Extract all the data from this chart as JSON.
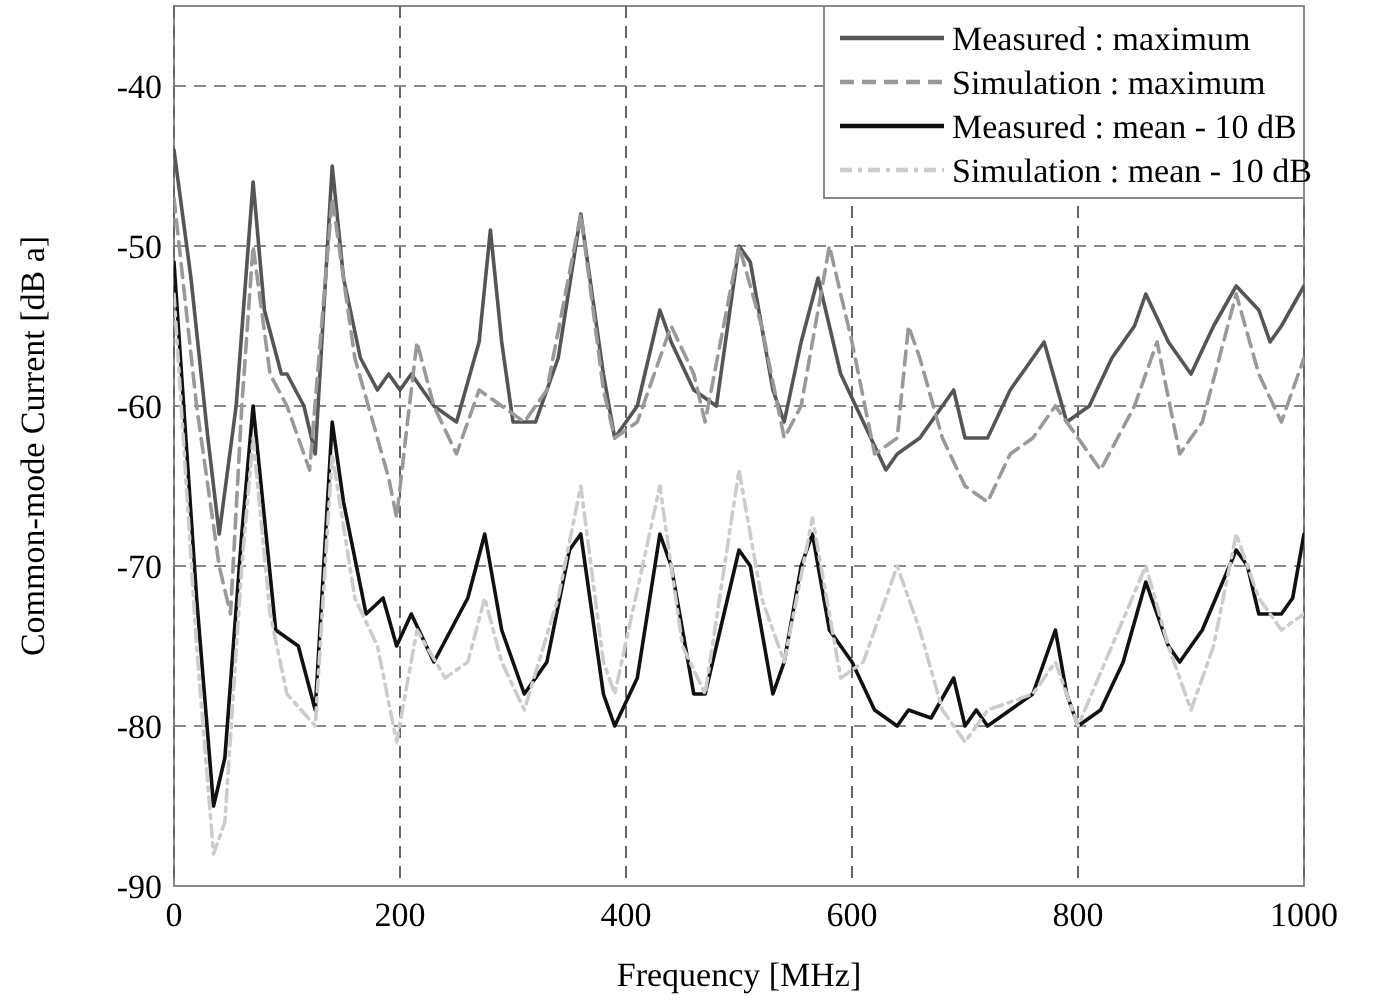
{
  "chart_data": {
    "type": "line",
    "xlabel": "Frequency [MHz]",
    "ylabel": "Common-mode Current [dB a]",
    "xlim": [
      0,
      1000
    ],
    "ylim": [
      -90,
      -35
    ],
    "xticks": [
      0,
      200,
      400,
      600,
      800,
      1000
    ],
    "yticks": [
      -90,
      -80,
      -70,
      -60,
      -50,
      -40
    ],
    "grid": true,
    "legend": "top right",
    "series": [
      {
        "name": "Measured : maximum",
        "color": "#555555",
        "line_style": "solid",
        "x": [
          0,
          15,
          30,
          40,
          55,
          70,
          80,
          95,
          100,
          115,
          125,
          140,
          150,
          165,
          180,
          190,
          200,
          210,
          230,
          250,
          270,
          280,
          290,
          300,
          320,
          340,
          360,
          380,
          390,
          410,
          430,
          440,
          460,
          480,
          500,
          510,
          530,
          540,
          555,
          570,
          590,
          610,
          630,
          640,
          660,
          680,
          690,
          700,
          720,
          740,
          760,
          770,
          790,
          810,
          830,
          850,
          860,
          880,
          900,
          920,
          940,
          960,
          970,
          980,
          1000
        ],
        "values": [
          -44,
          -52,
          -62,
          -68,
          -60,
          -46,
          -54,
          -58,
          -58,
          -60,
          -63,
          -45,
          -52,
          -57,
          -59,
          -58,
          -59,
          -58,
          -60,
          -61,
          -56,
          -49,
          -56,
          -61,
          -61,
          -57,
          -48,
          -58,
          -62,
          -60,
          -54,
          -56,
          -59,
          -60,
          -50,
          -51,
          -59,
          -61,
          -56,
          -52,
          -58,
          -61,
          -64,
          -63,
          -62,
          -60,
          -59,
          -62,
          -62,
          -59,
          -57,
          -56,
          -61,
          -60,
          -57,
          -55,
          -53,
          -56,
          -58,
          -55,
          -52.5,
          -54,
          -56,
          -55,
          -52.5
        ]
      },
      {
        "name": "Simulation : maximum",
        "color": "#999999",
        "line_style": "dashed",
        "x": [
          0,
          20,
          40,
          50,
          60,
          70,
          85,
          100,
          120,
          140,
          160,
          180,
          190,
          197,
          205,
          215,
          230,
          250,
          270,
          290,
          310,
          330,
          360,
          380,
          390,
          410,
          440,
          460,
          470,
          500,
          520,
          540,
          555,
          580,
          600,
          620,
          640,
          650,
          660,
          680,
          700,
          720,
          740,
          760,
          780,
          800,
          820,
          850,
          870,
          890,
          910,
          940,
          960,
          980,
          1000
        ],
        "values": [
          -47,
          -60,
          -70,
          -73,
          -60,
          -50,
          -58,
          -60,
          -64,
          -47,
          -57,
          -62,
          -64.5,
          -67,
          -62,
          -56,
          -60,
          -63,
          -59,
          -60,
          -61,
          -59,
          -48,
          -59,
          -62,
          -61,
          -55,
          -58,
          -61,
          -50,
          -55,
          -62,
          -60,
          -50,
          -56,
          -63,
          -62,
          -55,
          -57,
          -62,
          -65,
          -66,
          -63,
          -62,
          -60,
          -62,
          -64,
          -60,
          -56,
          -63,
          -61,
          -53,
          -58,
          -61,
          -57
        ]
      },
      {
        "name": "Measured : mean - 10 dB",
        "color": "#111111",
        "line_style": "solid",
        "x": [
          0,
          20,
          35,
          45,
          60,
          70,
          80,
          90,
          110,
          125,
          140,
          150,
          170,
          185,
          197,
          210,
          230,
          260,
          275,
          290,
          310,
          330,
          350,
          360,
          380,
          390,
          410,
          430,
          440,
          460,
          470,
          500,
          510,
          530,
          540,
          555,
          565,
          580,
          600,
          620,
          640,
          650,
          670,
          690,
          700,
          710,
          720,
          740,
          760,
          780,
          790,
          800,
          820,
          840,
          860,
          880,
          890,
          910,
          940,
          950,
          960,
          980,
          990,
          1000
        ],
        "values": [
          -51,
          -72,
          -85,
          -82,
          -68,
          -60,
          -67,
          -74,
          -75,
          -79,
          -61,
          -66,
          -73,
          -72,
          -75,
          -73,
          -76,
          -72,
          -68,
          -74,
          -78,
          -76,
          -69,
          -68,
          -78,
          -80,
          -77,
          -68,
          -70,
          -78,
          -78,
          -69,
          -70,
          -78,
          -76,
          -70,
          -68,
          -74,
          -76,
          -79,
          -80,
          -79,
          -79.5,
          -77,
          -80,
          -79,
          -80,
          -79,
          -78,
          -74,
          -78,
          -80,
          -79,
          -76,
          -71,
          -75,
          -76,
          -74,
          -69,
          -70,
          -73,
          -73,
          -72,
          -68
        ]
      },
      {
        "name": "Simulation : mean - 10 dB",
        "color": "#cccccc",
        "line_style": "dotted",
        "x": [
          0,
          20,
          35,
          45,
          60,
          70,
          85,
          100,
          125,
          140,
          160,
          180,
          197,
          215,
          240,
          260,
          275,
          290,
          310,
          340,
          360,
          380,
          390,
          430,
          450,
          470,
          500,
          520,
          540,
          565,
          590,
          610,
          640,
          660,
          680,
          700,
          720,
          760,
          780,
          800,
          830,
          860,
          880,
          900,
          920,
          940,
          960,
          980,
          1000
        ],
        "values": [
          -53,
          -75,
          -88,
          -86,
          -70,
          -62,
          -73,
          -78,
          -80,
          -63,
          -72,
          -75,
          -81,
          -74,
          -77,
          -76,
          -72,
          -76,
          -79,
          -72,
          -65,
          -76,
          -78,
          -65,
          -75,
          -78,
          -64,
          -72,
          -76,
          -67,
          -77,
          -76,
          -70,
          -74,
          -79,
          -81,
          -79,
          -78,
          -76,
          -80,
          -75,
          -70,
          -75,
          -79,
          -75,
          -68,
          -72,
          -74,
          -73
        ]
      }
    ]
  }
}
